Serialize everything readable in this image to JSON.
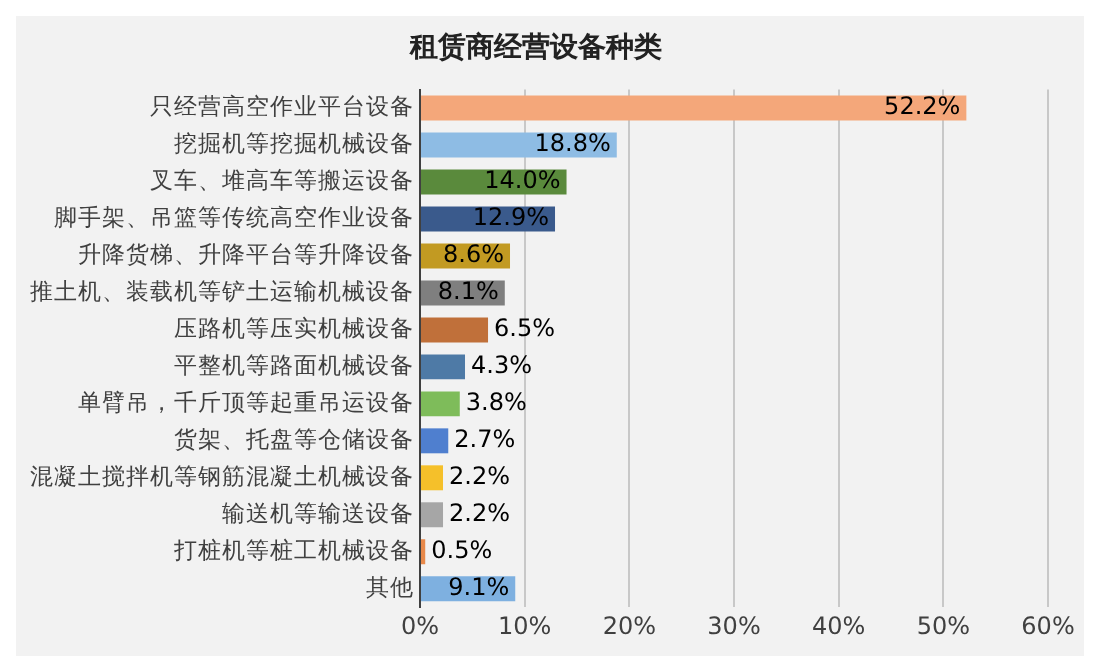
{
  "chart_data": {
    "type": "bar",
    "orientation": "horizontal",
    "title": "租赁商经营设备种类",
    "categories": [
      "只经营高空作业平台设备",
      "挖掘机等挖掘机械设备",
      "叉车、堆高车等搬运设备",
      "脚手架、吊篮等传统高空作业设备",
      "升降货梯、升降平台等升降设备",
      "推土机、装载机等铲土运输机械设备",
      "压路机等压实机械设备",
      "平整机等路面机械设备",
      "单臂吊，千斤顶等起重吊运设备",
      "货架、托盘等仓储设备",
      "混凝土搅拌机等钢筋混凝土机械设备",
      "输送机等输送设备",
      "打桩机等桩工机械设备",
      "其他"
    ],
    "values": [
      52.2,
      18.8,
      14.0,
      12.9,
      8.6,
      8.1,
      6.5,
      4.3,
      3.8,
      2.7,
      2.2,
      2.2,
      0.5,
      9.1
    ],
    "colors": [
      "#f4a77a",
      "#8ebce4",
      "#5a8a3c",
      "#3a5a8c",
      "#c29a22",
      "#7f7f7f",
      "#c0703a",
      "#4e7aa6",
      "#7ebc5a",
      "#4f7fcf",
      "#f5c02a",
      "#a6a6a6",
      "#e8894a",
      "#7eb0e0"
    ],
    "value_labels": [
      "52.2%",
      "18.8%",
      "14.0%",
      "12.9%",
      "8.6%",
      "8.1%",
      "6.5%",
      "4.3%",
      "3.8%",
      "2.7%",
      "2.2%",
      "2.2%",
      "0.5%",
      "9.1%"
    ],
    "xlim": [
      0,
      60
    ],
    "xticks": [
      {
        "value": 0,
        "label": "0%"
      },
      {
        "value": 10,
        "label": "10%"
      },
      {
        "value": 20,
        "label": "20%"
      },
      {
        "value": 30,
        "label": "30%"
      },
      {
        "value": 40,
        "label": "40%"
      },
      {
        "value": 50,
        "label": "50%"
      },
      {
        "value": 60,
        "label": "60%"
      }
    ],
    "grid": "x",
    "legend": false
  }
}
